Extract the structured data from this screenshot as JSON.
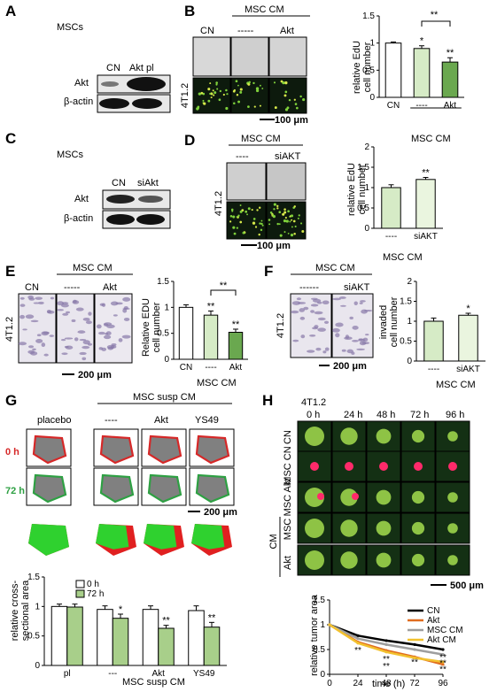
{
  "panels": {
    "A": {
      "letter": "A",
      "cell": "MSCs",
      "lanes": [
        "CN",
        "Akt pl"
      ],
      "rows": [
        "Akt",
        "β-actin"
      ]
    },
    "B": {
      "letter": "B",
      "group": "MSC CM",
      "cols": [
        "CN",
        "-----",
        "Akt"
      ],
      "rowlabel": "4T1.2",
      "scale": "100 μm",
      "ylabel1": "relative EdU",
      "ylabel2": "cell number",
      "xcats": [
        "CN",
        "----",
        "Akt"
      ],
      "xgroup": "MSC CM",
      "stars": [
        "*",
        "**",
        "**"
      ]
    },
    "C": {
      "letter": "C",
      "cell": "MSCs",
      "lanes": [
        "CN",
        "siAkt"
      ],
      "rows": [
        "Akt",
        "β-actin"
      ]
    },
    "D": {
      "letter": "D",
      "group": "MSC CM",
      "cols": [
        "----",
        "siAKT"
      ],
      "rowlabel": "4T1.2",
      "scale": "100 μm",
      "ylabel1": "relative EdU",
      "ylabel2": "cell number",
      "xcats": [
        "----",
        "siAKT"
      ],
      "xgroup": "MSC CM",
      "stars": [
        "**"
      ]
    },
    "E": {
      "letter": "E",
      "group": "MSC CM",
      "cols": [
        "CN",
        "-----",
        "Akt"
      ],
      "rowlabel": "4T1.2",
      "scale": "200 μm",
      "ylabel1": "Relative EDU",
      "ylabel2": "cell number",
      "xcats": [
        "CN",
        "----",
        "Akt"
      ],
      "xgroup": "MSC CM",
      "stars": [
        "**",
        "**",
        "**"
      ]
    },
    "F": {
      "letter": "F",
      "group": "MSC CM",
      "cols": [
        "------",
        "siAKT"
      ],
      "rowlabel": "4T1.2",
      "scale": "200 μm",
      "ylabel1": "invaded",
      "ylabel2": "cell number",
      "xcats": [
        "----",
        "siAKT"
      ],
      "xgroup": "MSC CM",
      "stars": [
        "*"
      ]
    },
    "G": {
      "letter": "G",
      "group": "MSC susp CM",
      "cols": [
        "placebo",
        "----",
        "Akt",
        "YS49"
      ],
      "rows": [
        "0 h",
        "72 h"
      ],
      "scale": "200 μm",
      "legend": [
        "0 h",
        "72 h"
      ],
      "ylabel1": "relative cross-",
      "ylabel2": "sectional area",
      "xcats": [
        "pl",
        "---",
        "Akt",
        "YS49"
      ],
      "xgroup": "MSC susp CM",
      "stars": [
        "*",
        "**",
        "**"
      ]
    },
    "H": {
      "letter": "H",
      "cell": "4T1.2",
      "cols": [
        "0 h",
        "24 h",
        "48 h",
        "72 h",
        "96 h"
      ],
      "rows": [
        "CN",
        "MSC CN",
        "MSC Akt",
        "MSC",
        "Akt"
      ],
      "sidegroup": "CM",
      "scale": "500 μm",
      "xlabel": "time (h)",
      "ylabel": "relative tumor area",
      "stars": [
        "**",
        "**",
        "**",
        "**",
        "**",
        "**",
        "**"
      ]
    }
  },
  "chart_data": [
    {
      "type": "bar",
      "panel": "B",
      "categories": [
        "CN",
        "----",
        "Akt"
      ],
      "values": [
        1.0,
        0.9,
        0.65
      ],
      "errors": [
        0.02,
        0.05,
        0.08
      ],
      "ylim": [
        0,
        1.5
      ],
      "ticks": [
        0,
        0.5,
        1.0,
        1.5
      ],
      "ylabel": "relative EdU cell number",
      "colors": [
        "#ffffff",
        "#d6ebc6",
        "#6aa84f"
      ]
    },
    {
      "type": "bar",
      "panel": "D",
      "categories": [
        "----",
        "siAKT"
      ],
      "values": [
        1.0,
        1.2
      ],
      "errors": [
        0.07,
        0.05
      ],
      "ylim": [
        0,
        2
      ],
      "ticks": [
        0,
        0.5,
        1.0,
        1.5,
        2.0
      ],
      "ylabel": "relative EdU cell number",
      "colors": [
        "#d6ebc6",
        "#eaf5df"
      ]
    },
    {
      "type": "bar",
      "panel": "E",
      "categories": [
        "CN",
        "----",
        "Akt"
      ],
      "values": [
        1.0,
        0.85,
        0.52
      ],
      "errors": [
        0.05,
        0.08,
        0.06
      ],
      "ylim": [
        0,
        1.5
      ],
      "ticks": [
        0,
        0.5,
        1.0,
        1.5
      ],
      "ylabel": "Relative EDU cell number",
      "colors": [
        "#ffffff",
        "#d6ebc6",
        "#6aa84f"
      ]
    },
    {
      "type": "bar",
      "panel": "F",
      "categories": [
        "----",
        "siAKT"
      ],
      "values": [
        1.0,
        1.15
      ],
      "errors": [
        0.08,
        0.05
      ],
      "ylim": [
        0,
        2
      ],
      "ticks": [
        0,
        0.5,
        1.0,
        1.5,
        2.0
      ],
      "ylabel": "invaded cell number",
      "colors": [
        "#d6ebc6",
        "#eaf5df"
      ]
    },
    {
      "type": "bar",
      "panel": "G",
      "categories": [
        "pl",
        "---",
        "Akt",
        "YS49"
      ],
      "series": [
        {
          "name": "0 h",
          "values": [
            1.0,
            0.95,
            0.95,
            0.93
          ],
          "errors": [
            0.04,
            0.06,
            0.06,
            0.08
          ]
        },
        {
          "name": "72 h",
          "values": [
            0.99,
            0.8,
            0.63,
            0.65
          ],
          "errors": [
            0.05,
            0.07,
            0.05,
            0.08
          ]
        }
      ],
      "ylim": [
        0,
        1.5
      ],
      "ticks": [
        0,
        0.5,
        1.0,
        1.5
      ],
      "ylabel": "relative cross-sectional area",
      "colors": [
        "#ffffff",
        "#a8cf8a"
      ]
    },
    {
      "type": "line",
      "panel": "H",
      "x": [
        0,
        24,
        48,
        72,
        96
      ],
      "series": [
        {
          "name": "CN",
          "values": [
            1.0,
            0.78,
            0.68,
            0.6,
            0.5
          ],
          "color": "#000000"
        },
        {
          "name": "Akt",
          "values": [
            1.0,
            0.65,
            0.48,
            0.35,
            0.2
          ],
          "color": "#e06c1f"
        },
        {
          "name": "MSC CM",
          "values": [
            1.0,
            0.72,
            0.6,
            0.5,
            0.4
          ],
          "color": "#9e9e9e"
        },
        {
          "name": "Akt CM",
          "values": [
            1.0,
            0.63,
            0.45,
            0.33,
            0.25
          ],
          "color": "#f2c12e"
        }
      ],
      "xlim": [
        0,
        96
      ],
      "ylim": [
        0,
        1.5
      ],
      "xticks": [
        0,
        24,
        48,
        72,
        96
      ],
      "yticks": [
        0,
        0.5,
        1.0,
        1.5
      ],
      "xlabel": "time (h)",
      "ylabel": "relative tumor area"
    }
  ]
}
